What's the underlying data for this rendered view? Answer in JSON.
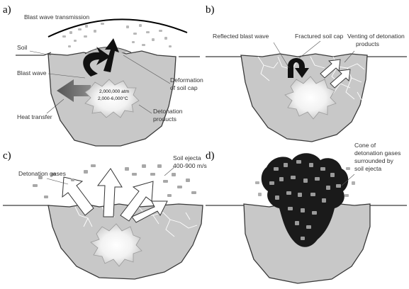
{
  "panels": [
    {
      "letter": "a)",
      "labels": {
        "blast_wave_transmission": "Blast wave transmission",
        "soil": "Soil",
        "blast_wave": "Blast wave",
        "heat_transfer": "Heat transfer",
        "deformation_line1": "Deformation",
        "deformation_line2": "of soil cap",
        "detonation_line1": "Detonation",
        "detonation_line2": "products",
        "pressure": "2,000,000 atm",
        "temperature": "2,000-6,000°C"
      }
    },
    {
      "letter": "b)",
      "labels": {
        "reflected_blast_wave": "Reflected blast wave",
        "fractured_soil_cap": "Fractured soil cap",
        "venting_line1": "Venting of detonation",
        "venting_line2": "products"
      }
    },
    {
      "letter": "c)",
      "labels": {
        "detonation_gases": "Detonation gases",
        "soil_ejecta_line1": "Soil ejecta",
        "soil_ejecta_line2": "400-900 m/s"
      }
    },
    {
      "letter": "d)",
      "labels": {
        "cone_line1": "Cone of",
        "cone_line2": "detonation gases",
        "cone_line3": "surrounded by",
        "cone_line4": "soil ejecta"
      }
    }
  ],
  "colors": {
    "soil": "#c8c8c8",
    "soil_stroke": "#3a3a3a",
    "arrow_dark": "#111111",
    "arrow_white": "#ffffff",
    "gas_cloud": "#1a1a1a",
    "heat_arrow": "#666666"
  }
}
